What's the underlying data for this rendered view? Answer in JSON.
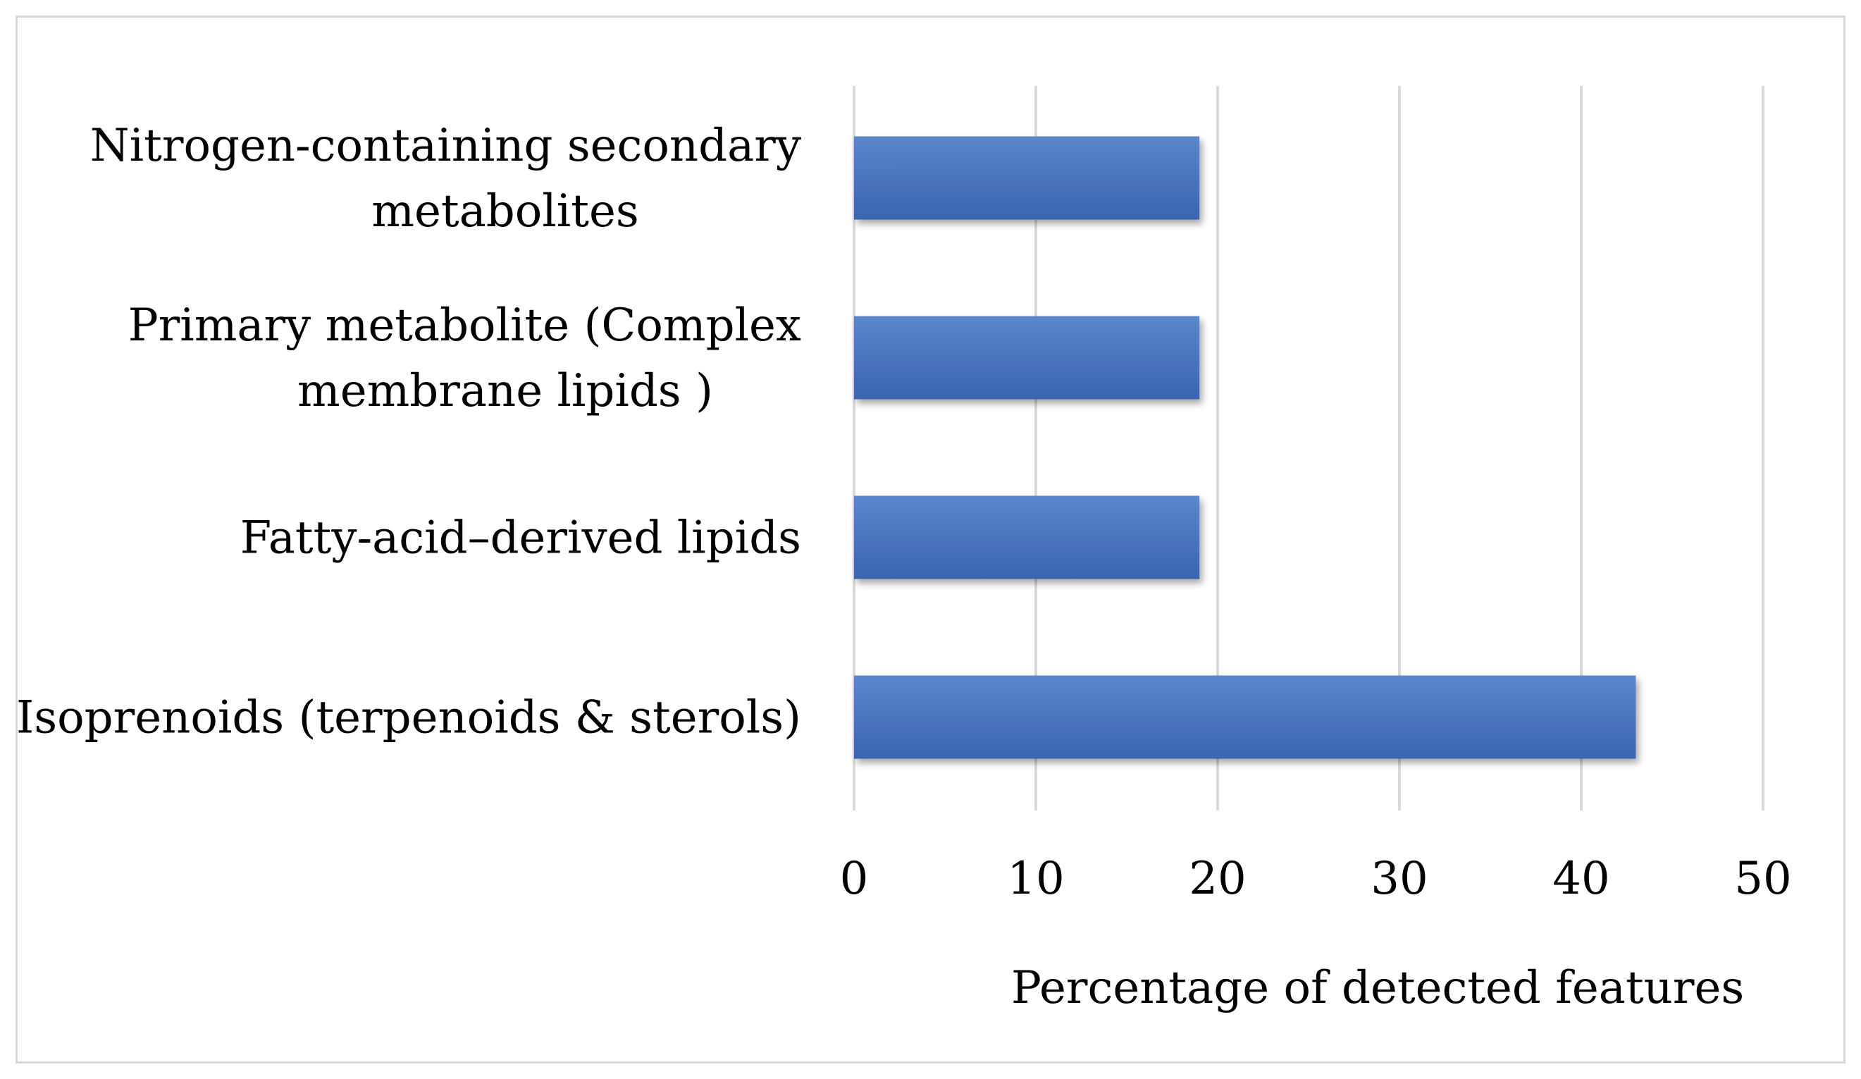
{
  "chart_data": {
    "type": "bar",
    "orientation": "horizontal",
    "title": "",
    "xlabel": "Percentage of detected features",
    "ylabel": "",
    "categories": [
      [
        "Nitrogen-containing secondary",
        "metabolites"
      ],
      [
        "Primary metabolite (Complex",
        "membrane lipids )"
      ],
      [
        "Fatty-acid–derived lipids"
      ],
      [
        "Isoprenoids (terpenoids & sterols)"
      ]
    ],
    "values": [
      19,
      19,
      19,
      43
    ],
    "xlim": [
      0,
      50
    ],
    "xticks": [
      "0",
      "10",
      "20",
      "30",
      "40",
      "50"
    ],
    "grid": "vertical",
    "legend": "none",
    "colors": {
      "bar": "#4472c4",
      "bar_light": "#5b87cc",
      "bar_dark": "#3964b0",
      "grid": "#d9d9d9",
      "frame": "#d9d9d9"
    }
  }
}
